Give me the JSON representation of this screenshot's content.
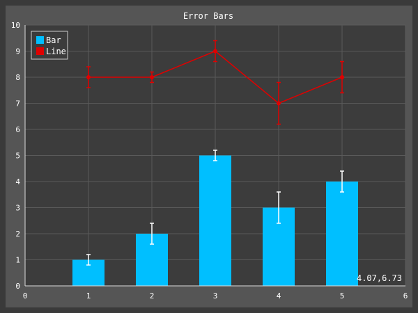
{
  "chart_data": {
    "type": "bar",
    "title": "Error Bars",
    "xlabel": "",
    "ylabel": "",
    "xlim": [
      0,
      6
    ],
    "ylim": [
      0,
      10
    ],
    "xticks": [
      "0",
      "1",
      "2",
      "3",
      "4",
      "5",
      "6"
    ],
    "yticks": [
      "0",
      "1",
      "2",
      "3",
      "4",
      "5",
      "6",
      "7",
      "8",
      "9",
      "10"
    ],
    "grid": true,
    "legend_position": "top-left",
    "series": [
      {
        "name": "Bar",
        "kind": "bar",
        "color": "#00bfff",
        "x": [
          1,
          2,
          3,
          4,
          5
        ],
        "values": [
          1,
          2,
          5,
          3,
          4
        ],
        "errors": [
          0.2,
          0.4,
          0.2,
          0.6,
          0.4
        ]
      },
      {
        "name": "Line",
        "kind": "line",
        "color": "#e00000",
        "x": [
          1,
          2,
          3,
          4,
          5
        ],
        "values": [
          8,
          8,
          9,
          7,
          8
        ],
        "errors": [
          0.4,
          0.2,
          0.4,
          0.8,
          0.6
        ]
      }
    ],
    "cursor_readout": "4.07,6.73"
  }
}
